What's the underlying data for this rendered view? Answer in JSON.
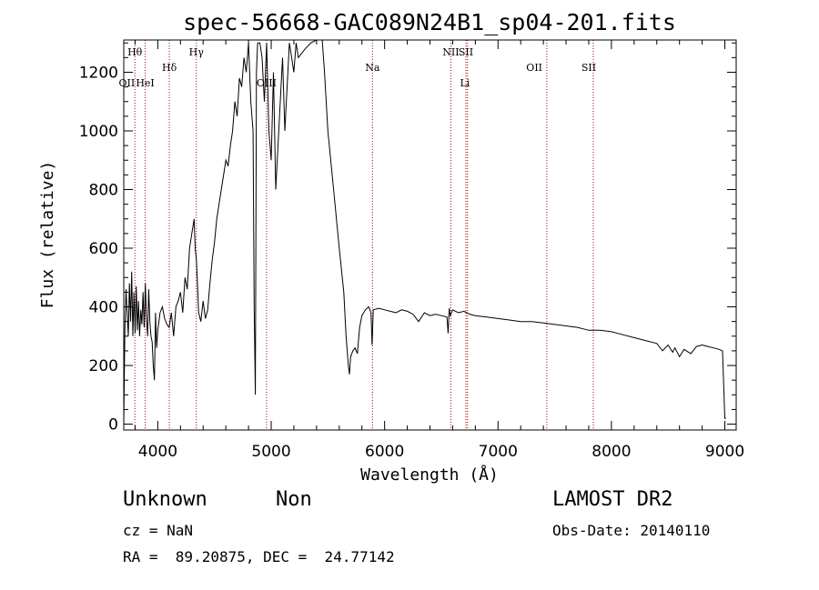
{
  "chart_data": {
    "type": "line",
    "title": "spec-56668-GAC089N24B1_sp04-201.fits",
    "xlabel": "Wavelength (Å)",
    "ylabel": "Flux (relative)",
    "xlim": [
      3700,
      9100
    ],
    "ylim": [
      -20,
      1310
    ],
    "xticks": [
      4000,
      5000,
      6000,
      7000,
      8000,
      9000
    ],
    "yticks": [
      0,
      200,
      400,
      600,
      800,
      1000,
      1200
    ],
    "grid": false,
    "series": [
      {
        "x": [
          3700,
          3710,
          3720,
          3730,
          3740,
          3750,
          3760,
          3770,
          3780,
          3790,
          3800,
          3810,
          3820,
          3830,
          3840,
          3850,
          3860,
          3870,
          3880,
          3890,
          3900,
          3910,
          3920,
          3930,
          3940,
          3950,
          3960,
          3970,
          3980,
          3990,
          4000,
          4020,
          4040,
          4060,
          4080,
          4100,
          4120,
          4140,
          4160,
          4180,
          4200,
          4220,
          4240,
          4260,
          4280,
          4300,
          4320,
          4330,
          4340,
          4350,
          4360,
          4380,
          4400,
          4420,
          4440,
          4460,
          4480,
          4500,
          4520,
          4540,
          4560,
          4580,
          4600,
          4620,
          4640,
          4660,
          4680,
          4700,
          4720,
          4740,
          4760,
          4780,
          4800,
          4820,
          4840,
          4850,
          4860,
          4870,
          4880,
          4900,
          4920,
          4940,
          4960,
          4980,
          5000,
          5020,
          5040,
          5060,
          5080,
          5100,
          5120,
          5140,
          5160,
          5180,
          5200,
          5220,
          5240,
          5260,
          5300,
          5350,
          5400,
          5450,
          5470,
          5500,
          5550,
          5600,
          5640,
          5660,
          5680,
          5690,
          5700,
          5720,
          5740,
          5760,
          5780,
          5800,
          5830,
          5860,
          5880,
          5890,
          5900,
          5950,
          6000,
          6050,
          6100,
          6150,
          6200,
          6250,
          6300,
          6350,
          6400,
          6450,
          6500,
          6550,
          6560,
          6570,
          6580,
          6600,
          6650,
          6700,
          6750,
          6800,
          6900,
          7000,
          7100,
          7200,
          7300,
          7400,
          7500,
          7600,
          7700,
          7800,
          7900,
          8000,
          8100,
          8200,
          8300,
          8400,
          8450,
          8500,
          8540,
          8560,
          8600,
          8640,
          8660,
          8700,
          8750,
          8800,
          8850,
          8900,
          8950,
          8980,
          9000,
          9010
        ],
        "y": [
          0,
          320,
          460,
          380,
          300,
          480,
          350,
          520,
          300,
          450,
          310,
          470,
          320,
          420,
          300,
          390,
          340,
          450,
          330,
          480,
          360,
          300,
          460,
          350,
          300,
          280,
          200,
          150,
          380,
          260,
          320,
          380,
          400,
          360,
          340,
          330,
          380,
          300,
          400,
          420,
          450,
          380,
          500,
          460,
          600,
          650,
          700,
          600,
          560,
          480,
          380,
          350,
          420,
          360,
          390,
          480,
          560,
          620,
          700,
          750,
          800,
          850,
          900,
          880,
          950,
          1000,
          1100,
          1050,
          1180,
          1150,
          1250,
          1200,
          1300,
          1100,
          1000,
          400,
          100,
          1200,
          1300,
          1300,
          1250,
          1100,
          1300,
          1000,
          900,
          1200,
          800,
          950,
          1100,
          1250,
          1000,
          1150,
          1300,
          1250,
          1200,
          1300,
          1250,
          1260,
          1280,
          1300,
          1310,
          1310,
          1200,
          1000,
          800,
          600,
          450,
          300,
          200,
          170,
          230,
          250,
          260,
          240,
          330,
          370,
          390,
          400,
          380,
          270,
          390,
          395,
          390,
          385,
          380,
          390,
          385,
          375,
          350,
          380,
          370,
          375,
          370,
          365,
          310,
          395,
          370,
          390,
          380,
          385,
          375,
          370,
          365,
          360,
          355,
          350,
          350,
          345,
          340,
          335,
          330,
          320,
          320,
          315,
          305,
          295,
          285,
          275,
          250,
          270,
          245,
          260,
          230,
          255,
          250,
          240,
          265,
          270,
          265,
          260,
          255,
          250,
          20,
          20
        ]
      }
    ],
    "annotations": [
      {
        "label": "Hθ",
        "x": 3798,
        "row": "top"
      },
      {
        "label": "OII",
        "x": 3727,
        "row": "mid"
      },
      {
        "label": "HeI",
        "x": 3889,
        "row": "mid"
      },
      {
        "label": "Hδ",
        "x": 4102,
        "row": "sub"
      },
      {
        "label": "Hγ",
        "x": 4340,
        "row": "top"
      },
      {
        "label": "OIII",
        "x": 4959,
        "row": "mid"
      },
      {
        "label": "Na",
        "x": 5893,
        "row": "sub"
      },
      {
        "label": "NII",
        "x": 6584,
        "row": "top"
      },
      {
        "label": "SII",
        "x": 6717,
        "row": "top"
      },
      {
        "label": "Li",
        "x": 6708,
        "row": "mid"
      },
      {
        "label": "OII",
        "x": 7320,
        "row": "sub"
      },
      {
        "label": "SII",
        "x": 7800,
        "row": "sub"
      }
    ],
    "line_positions": [
      3798,
      3889,
      4102,
      4340,
      4959,
      5893,
      6584,
      6717,
      6731,
      7430,
      7840
    ]
  },
  "info": {
    "class_label": "Unknown",
    "subclass_label": "Non",
    "survey": "LAMOST DR2",
    "cz": "cz = NaN",
    "obs_date": "Obs-Date: 20140110",
    "coords": "RA =  89.20875, DEC =  24.77142"
  },
  "colors": {
    "spectrum": "#000000",
    "line_markers": "#aa0000",
    "axes": "#000000"
  }
}
